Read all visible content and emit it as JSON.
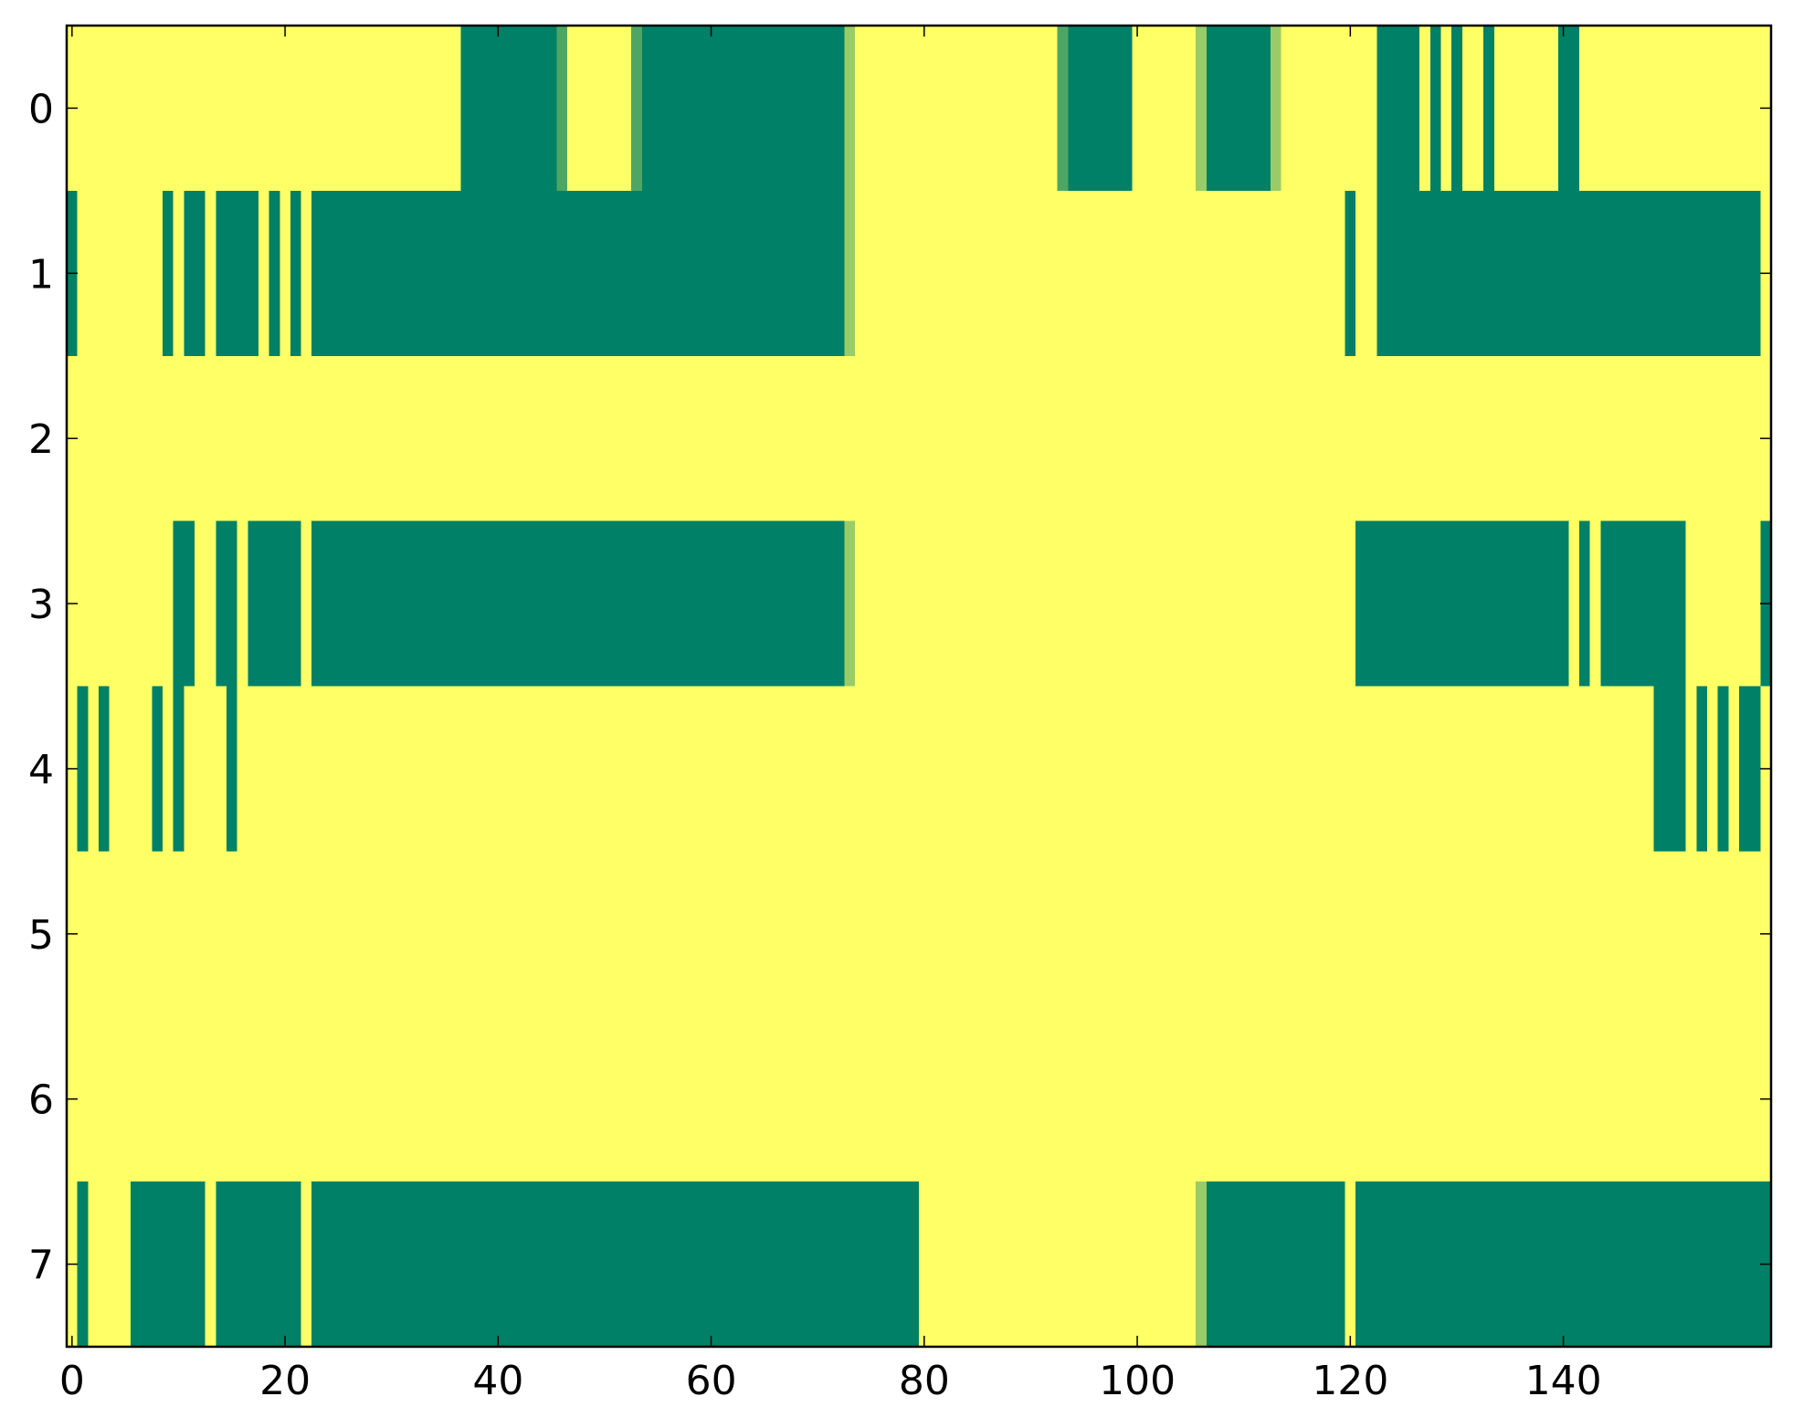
{
  "chart_data": {
    "type": "heatmap",
    "title": "",
    "xlabel": "",
    "ylabel": "",
    "n_cols": 160,
    "n_rows": 8,
    "xlim": [
      -0.5,
      159.5
    ],
    "ylim": [
      7.5,
      -0.5
    ],
    "xticks": [
      0,
      20,
      40,
      60,
      80,
      100,
      120,
      140
    ],
    "xtick_labels": [
      "0",
      "20",
      "40",
      "60",
      "80",
      "100",
      "120",
      "140"
    ],
    "yticks": [
      0,
      1,
      2,
      3,
      4,
      5,
      6,
      7
    ],
    "ytick_labels": [
      "0",
      "1",
      "2",
      "3",
      "4",
      "5",
      "6",
      "7"
    ],
    "colormap": "summer",
    "value_range": [
      0,
      1
    ],
    "default_value": 1,
    "grid": false,
    "colors": {
      "low": "#008066",
      "high": "#ffff66"
    },
    "rows": [
      {
        "row": 0,
        "segments": [
          {
            "start": 37,
            "end": 45,
            "value": 0
          },
          {
            "start": 46,
            "end": 46,
            "value": 0.3
          },
          {
            "start": 53,
            "end": 53,
            "value": 0.3
          },
          {
            "start": 54,
            "end": 72,
            "value": 0
          },
          {
            "start": 73,
            "end": 73,
            "value": 0.6
          },
          {
            "start": 93,
            "end": 93,
            "value": 0.3
          },
          {
            "start": 94,
            "end": 99,
            "value": 0
          },
          {
            "start": 106,
            "end": 106,
            "value": 0.6
          },
          {
            "start": 107,
            "end": 112,
            "value": 0
          },
          {
            "start": 113,
            "end": 113,
            "value": 0.6
          },
          {
            "start": 123,
            "end": 126,
            "value": 0
          },
          {
            "start": 128,
            "end": 128,
            "value": 0
          },
          {
            "start": 130,
            "end": 130,
            "value": 0
          },
          {
            "start": 133,
            "end": 133,
            "value": 0
          },
          {
            "start": 140,
            "end": 141,
            "value": 0
          }
        ]
      },
      {
        "row": 1,
        "segments": [
          {
            "start": 0,
            "end": 0,
            "value": 0
          },
          {
            "start": 9,
            "end": 9,
            "value": 0
          },
          {
            "start": 11,
            "end": 12,
            "value": 0
          },
          {
            "start": 14,
            "end": 17,
            "value": 0
          },
          {
            "start": 19,
            "end": 19,
            "value": 0
          },
          {
            "start": 21,
            "end": 21,
            "value": 0
          },
          {
            "start": 23,
            "end": 72,
            "value": 0
          },
          {
            "start": 73,
            "end": 73,
            "value": 0.6
          },
          {
            "start": 120,
            "end": 120,
            "value": 0
          },
          {
            "start": 123,
            "end": 158,
            "value": 0
          }
        ]
      },
      {
        "row": 2,
        "segments": []
      },
      {
        "row": 3,
        "segments": [
          {
            "start": 10,
            "end": 11,
            "value": 0
          },
          {
            "start": 14,
            "end": 15,
            "value": 0
          },
          {
            "start": 17,
            "end": 21,
            "value": 0
          },
          {
            "start": 23,
            "end": 72,
            "value": 0
          },
          {
            "start": 73,
            "end": 73,
            "value": 0.6
          },
          {
            "start": 121,
            "end": 140,
            "value": 0
          },
          {
            "start": 142,
            "end": 142,
            "value": 0
          },
          {
            "start": 144,
            "end": 151,
            "value": 0
          },
          {
            "start": 159,
            "end": 159,
            "value": 0
          }
        ]
      },
      {
        "row": 4,
        "segments": [
          {
            "start": 1,
            "end": 1,
            "value": 0
          },
          {
            "start": 3,
            "end": 3,
            "value": 0
          },
          {
            "start": 8,
            "end": 8,
            "value": 0
          },
          {
            "start": 10,
            "end": 10,
            "value": 0
          },
          {
            "start": 15,
            "end": 15,
            "value": 0
          },
          {
            "start": 149,
            "end": 151,
            "value": 0
          },
          {
            "start": 153,
            "end": 153,
            "value": 0
          },
          {
            "start": 155,
            "end": 155,
            "value": 0
          },
          {
            "start": 157,
            "end": 158,
            "value": 0
          }
        ]
      },
      {
        "row": 5,
        "segments": []
      },
      {
        "row": 6,
        "segments": []
      },
      {
        "row": 7,
        "segments": [
          {
            "start": 1,
            "end": 1,
            "value": 0
          },
          {
            "start": 6,
            "end": 12,
            "value": 0
          },
          {
            "start": 14,
            "end": 21,
            "value": 0
          },
          {
            "start": 23,
            "end": 79,
            "value": 0
          },
          {
            "start": 106,
            "end": 106,
            "value": 0.6
          },
          {
            "start": 107,
            "end": 119,
            "value": 0
          },
          {
            "start": 121,
            "end": 159,
            "value": 0
          }
        ]
      }
    ]
  }
}
